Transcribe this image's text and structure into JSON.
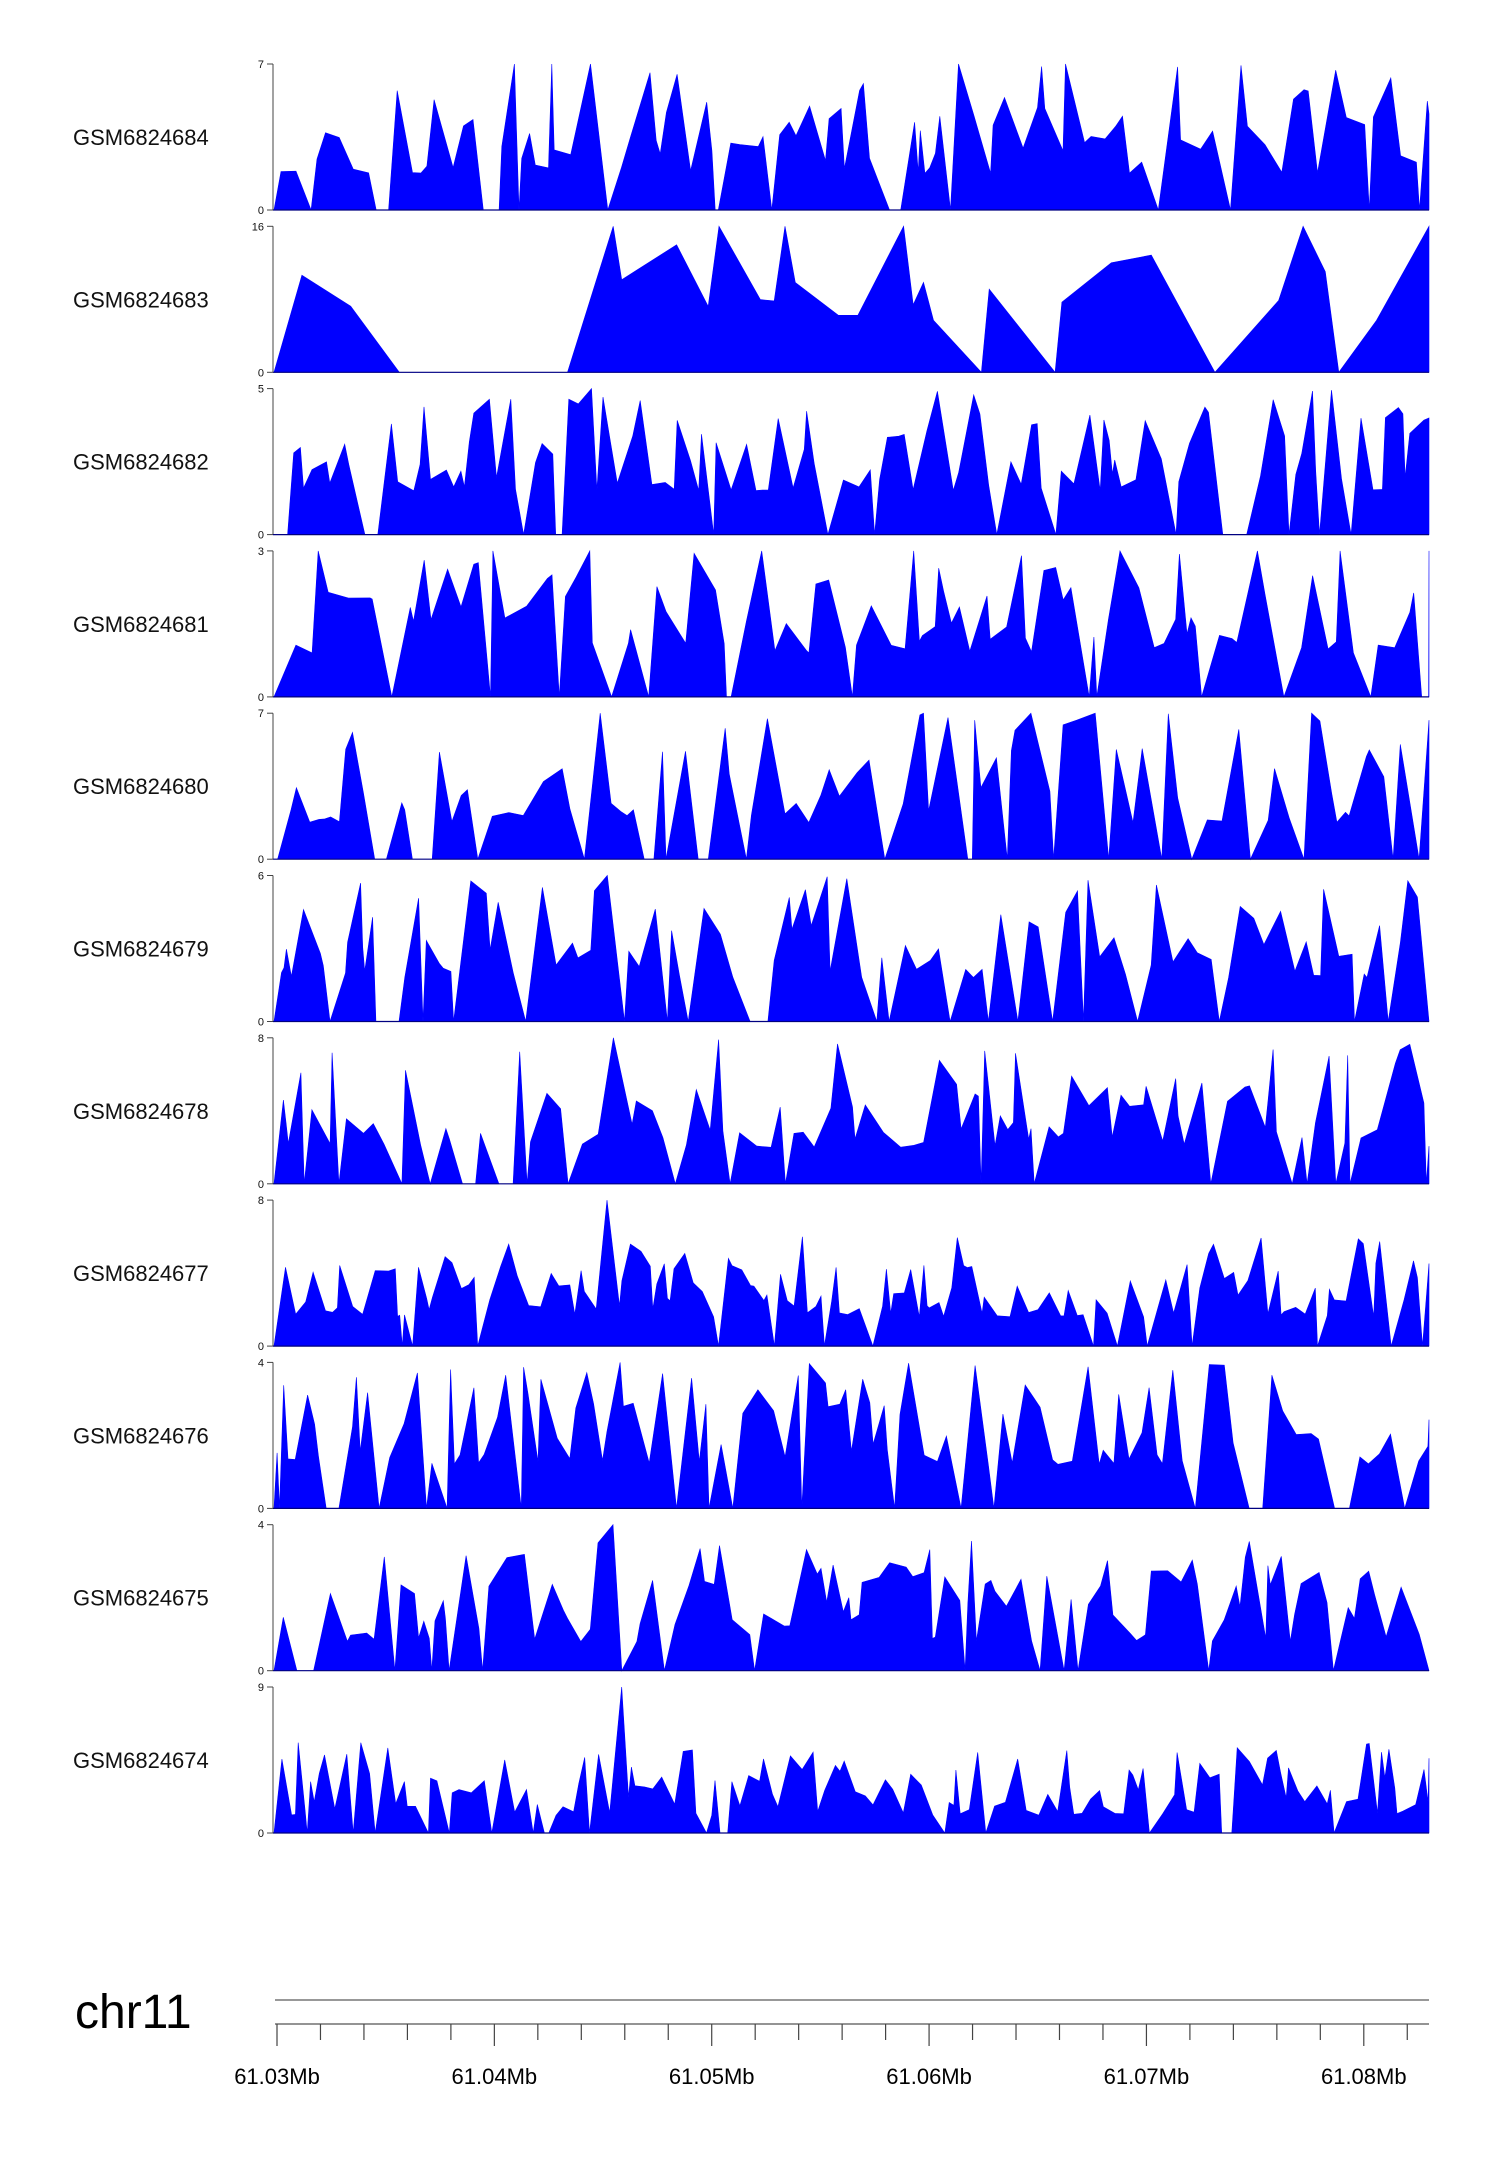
{
  "chart_data": {
    "type": "area",
    "title": "",
    "fill_color": "#0000ff",
    "stroke_color": "#000080",
    "genome_axis": {
      "chromosome": "chr11",
      "range_bp": [
        61030000,
        61083000
      ],
      "tick_labels": [
        {
          "bp": 61030000,
          "label": "61.03Mb"
        },
        {
          "bp": 61040000,
          "label": "61.04Mb"
        },
        {
          "bp": 61050000,
          "label": "61.05Mb"
        },
        {
          "bp": 61060000,
          "label": "61.06Mb"
        },
        {
          "bp": 61070000,
          "label": "61.07Mb"
        },
        {
          "bp": 61080000,
          "label": "61.08Mb"
        }
      ],
      "minor_tick_step_bp": 2000
    },
    "series": [
      {
        "name": "GSM6824684",
        "ymin": 0,
        "ymax": 7,
        "seed": 11,
        "density": 0.55,
        "spikiness": 0.8,
        "base": 0.25
      },
      {
        "name": "GSM6824683",
        "ymin": 0,
        "ymax": 16,
        "seed": 23,
        "density": 0.22,
        "spikiness": 0.9,
        "base": 0.35
      },
      {
        "name": "GSM6824682",
        "ymin": 0,
        "ymax": 5,
        "seed": 37,
        "density": 0.7,
        "spikiness": 0.7,
        "base": 0.3
      },
      {
        "name": "GSM6824681",
        "ymin": 0,
        "ymax": 3,
        "seed": 41,
        "density": 0.5,
        "spikiness": 0.8,
        "base": 0.3
      },
      {
        "name": "GSM6824680",
        "ymin": 0,
        "ymax": 7,
        "seed": 53,
        "density": 0.55,
        "spikiness": 0.8,
        "base": 0.25
      },
      {
        "name": "GSM6824679",
        "ymin": 0,
        "ymax": 6,
        "seed": 67,
        "density": 0.65,
        "spikiness": 0.75,
        "base": 0.3
      },
      {
        "name": "GSM6824678",
        "ymin": 0,
        "ymax": 8,
        "seed": 79,
        "density": 0.6,
        "spikiness": 0.75,
        "base": 0.25
      },
      {
        "name": "GSM6824677",
        "ymin": 0,
        "ymax": 8,
        "seed": 83,
        "density": 0.85,
        "spikiness": 0.55,
        "base": 0.2
      },
      {
        "name": "GSM6824676",
        "ymin": 0,
        "ymax": 4,
        "seed": 97,
        "density": 0.7,
        "spikiness": 0.7,
        "base": 0.3
      },
      {
        "name": "GSM6824675",
        "ymin": 0,
        "ymax": 4,
        "seed": 101,
        "density": 0.6,
        "spikiness": 0.7,
        "base": 0.2
      },
      {
        "name": "GSM6824674",
        "ymin": 0,
        "ymax": 9,
        "seed": 113,
        "density": 0.9,
        "spikiness": 0.5,
        "base": 0.12
      }
    ]
  }
}
